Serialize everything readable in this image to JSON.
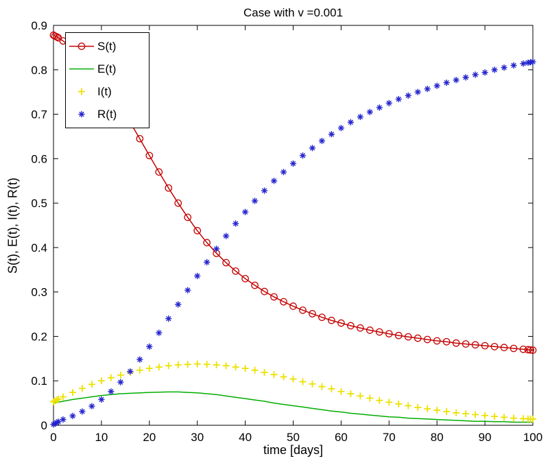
{
  "chart_data": {
    "type": "line",
    "title": "Case with v =0.001",
    "xlabel": "time [days]",
    "ylabel": "S(t), E(t), I(t),  R(t)",
    "xlim": [
      0,
      100
    ],
    "ylim": [
      0,
      0.9
    ],
    "xticks": [
      0,
      10,
      20,
      30,
      40,
      50,
      60,
      70,
      80,
      90,
      100
    ],
    "xtick_labels": [
      "0",
      "10",
      "20",
      "30",
      "40",
      "50",
      "60",
      "70",
      "80",
      "90",
      "100"
    ],
    "yticks": [
      0,
      0.1,
      0.2,
      0.3,
      0.4,
      0.5,
      0.6,
      0.7,
      0.8,
      0.9
    ],
    "ytick_labels": [
      "0",
      "0.1",
      "0.2",
      "0.3",
      "0.4",
      "0.5",
      "0.6",
      "0.7",
      "0.8",
      "0.9"
    ],
    "grid": false,
    "background": "#ffffff",
    "axes_color": "#000000",
    "legend": {
      "position": "top-left",
      "background": "#ffffff",
      "border_color": "#000000"
    },
    "series": [
      {
        "name": "S(t)",
        "key": "s",
        "color": "#c40000",
        "line": true,
        "marker": "circle",
        "x": [
          0,
          0.3,
          0.7,
          1,
          2,
          4,
          6,
          8,
          10,
          12,
          14,
          16,
          18,
          20,
          22,
          24,
          26,
          28,
          30,
          32,
          34,
          36,
          38,
          40,
          42,
          44,
          46,
          48,
          50,
          52,
          54,
          56,
          58,
          60,
          62,
          64,
          66,
          68,
          70,
          72,
          74,
          76,
          78,
          80,
          82,
          84,
          86,
          88,
          90,
          92,
          94,
          96,
          98,
          99,
          99.5,
          100
        ],
        "y": [
          0.878,
          0.876,
          0.874,
          0.872,
          0.865,
          0.849,
          0.83,
          0.808,
          0.782,
          0.752,
          0.718,
          0.682,
          0.645,
          0.607,
          0.57,
          0.534,
          0.5,
          0.468,
          0.438,
          0.411,
          0.387,
          0.366,
          0.347,
          0.33,
          0.315,
          0.301,
          0.289,
          0.278,
          0.268,
          0.259,
          0.251,
          0.243,
          0.236,
          0.23,
          0.224,
          0.219,
          0.214,
          0.21,
          0.206,
          0.202,
          0.199,
          0.196,
          0.193,
          0.19,
          0.188,
          0.185,
          0.183,
          0.181,
          0.179,
          0.177,
          0.175,
          0.173,
          0.171,
          0.17,
          0.1695,
          0.169
        ]
      },
      {
        "name": "E(t)",
        "key": "e",
        "color": "#00ad00",
        "line": true,
        "marker": "none",
        "x": [
          0,
          2,
          4,
          6,
          8,
          10,
          12,
          14,
          16,
          18,
          20,
          22,
          24,
          26,
          28,
          30,
          32,
          34,
          36,
          38,
          40,
          42,
          44,
          46,
          48,
          50,
          52,
          54,
          56,
          58,
          60,
          62,
          64,
          66,
          68,
          70,
          72,
          74,
          76,
          78,
          80,
          82,
          84,
          86,
          88,
          90,
          92,
          94,
          96,
          98,
          100
        ],
        "y": [
          0.05,
          0.054,
          0.058,
          0.061,
          0.064,
          0.067,
          0.069,
          0.071,
          0.072,
          0.073,
          0.074,
          0.0745,
          0.075,
          0.075,
          0.074,
          0.073,
          0.071,
          0.069,
          0.066,
          0.063,
          0.06,
          0.057,
          0.054,
          0.05,
          0.047,
          0.044,
          0.041,
          0.038,
          0.035,
          0.032,
          0.03,
          0.027,
          0.025,
          0.023,
          0.021,
          0.019,
          0.018,
          0.016,
          0.015,
          0.014,
          0.013,
          0.012,
          0.011,
          0.01,
          0.009,
          0.009,
          0.008,
          0.008,
          0.007,
          0.007,
          0.007
        ]
      },
      {
        "name": "I(t)",
        "key": "i",
        "color": "#ece100",
        "line": false,
        "marker": "plus",
        "x": [
          0,
          0.3,
          0.7,
          1,
          2,
          4,
          6,
          8,
          10,
          12,
          14,
          16,
          18,
          20,
          22,
          24,
          26,
          28,
          30,
          32,
          34,
          36,
          38,
          40,
          42,
          44,
          46,
          48,
          50,
          52,
          54,
          56,
          58,
          60,
          62,
          64,
          66,
          68,
          70,
          72,
          74,
          76,
          78,
          80,
          82,
          84,
          86,
          88,
          90,
          92,
          94,
          96,
          98,
          99,
          99.5,
          100
        ],
        "y": [
          0.053,
          0.055,
          0.057,
          0.059,
          0.064,
          0.074,
          0.083,
          0.092,
          0.1,
          0.107,
          0.113,
          0.119,
          0.124,
          0.128,
          0.131,
          0.134,
          0.136,
          0.137,
          0.138,
          0.137,
          0.136,
          0.134,
          0.131,
          0.128,
          0.124,
          0.119,
          0.114,
          0.109,
          0.104,
          0.098,
          0.093,
          0.087,
          0.082,
          0.076,
          0.071,
          0.066,
          0.061,
          0.056,
          0.052,
          0.048,
          0.044,
          0.04,
          0.037,
          0.034,
          0.031,
          0.028,
          0.026,
          0.024,
          0.022,
          0.02,
          0.018,
          0.016,
          0.015,
          0.0145,
          0.014,
          0.014
        ]
      },
      {
        "name": "R(t)",
        "key": "r",
        "color": "#2424cf",
        "line": false,
        "marker": "asterisk",
        "x": [
          0,
          0.3,
          0.7,
          1,
          2,
          4,
          6,
          8,
          10,
          12,
          14,
          16,
          18,
          20,
          22,
          24,
          26,
          28,
          30,
          32,
          34,
          36,
          38,
          40,
          42,
          44,
          46,
          48,
          50,
          52,
          54,
          56,
          58,
          60,
          62,
          64,
          66,
          68,
          70,
          72,
          74,
          76,
          78,
          80,
          82,
          84,
          86,
          88,
          90,
          92,
          94,
          96,
          98,
          99,
          99.5,
          100
        ],
        "y": [
          0.002,
          0.004,
          0.006,
          0.008,
          0.013,
          0.021,
          0.031,
          0.043,
          0.058,
          0.076,
          0.097,
          0.121,
          0.148,
          0.177,
          0.208,
          0.24,
          0.272,
          0.304,
          0.336,
          0.367,
          0.397,
          0.426,
          0.454,
          0.48,
          0.505,
          0.528,
          0.55,
          0.57,
          0.589,
          0.607,
          0.624,
          0.64,
          0.655,
          0.669,
          0.682,
          0.694,
          0.705,
          0.715,
          0.725,
          0.734,
          0.742,
          0.75,
          0.757,
          0.764,
          0.771,
          0.777,
          0.783,
          0.789,
          0.794,
          0.8,
          0.805,
          0.81,
          0.814,
          0.816,
          0.817,
          0.818
        ]
      }
    ]
  }
}
